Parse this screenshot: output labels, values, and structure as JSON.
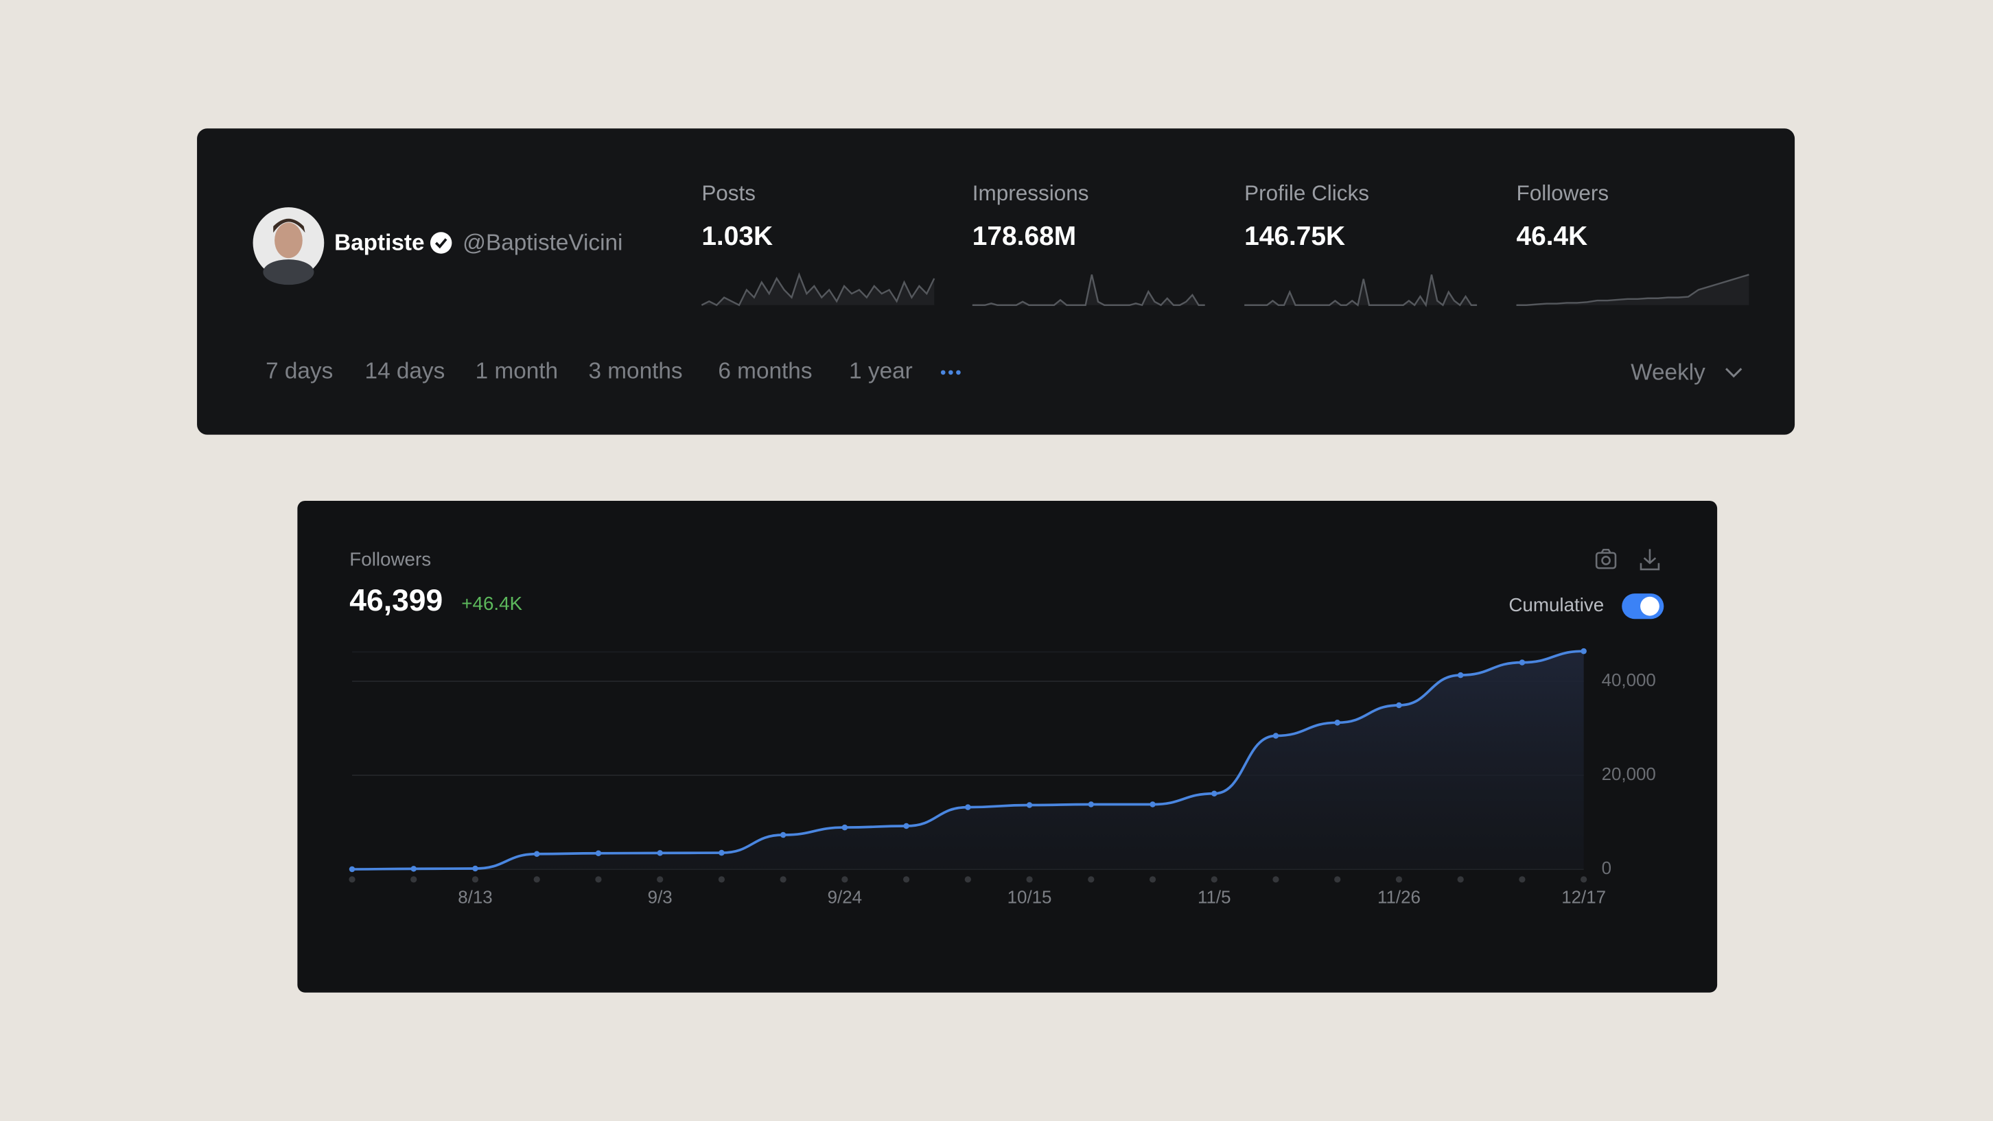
{
  "profile": {
    "name": "Baptiste",
    "handle": "@BaptisteVicini"
  },
  "stats": [
    {
      "label": "Posts",
      "value": "1.03K",
      "sparkline": [
        1,
        2,
        1,
        3,
        2,
        1,
        5,
        3,
        7,
        4,
        8,
        5,
        3,
        9,
        4,
        6,
        3,
        5,
        2,
        6,
        4,
        5,
        3,
        6,
        4,
        5,
        2,
        7,
        3,
        6,
        4,
        8
      ]
    },
    {
      "label": "Impressions",
      "value": "178.68M",
      "sparkline": [
        0,
        0,
        0,
        0.5,
        0,
        0,
        0,
        0,
        1,
        0,
        0,
        0,
        0,
        0,
        1.5,
        0,
        0,
        0,
        0,
        9,
        1,
        0,
        0,
        0,
        0,
        0,
        0.5,
        0,
        4,
        1,
        0,
        2,
        0,
        0,
        1,
        3,
        0,
        0
      ]
    },
    {
      "label": "Profile Clicks",
      "value": "146.75K",
      "sparkline": [
        0,
        0,
        0,
        0,
        0,
        1,
        0,
        0,
        3,
        0,
        0,
        0,
        0,
        0,
        0,
        0,
        1,
        0,
        0,
        1,
        0,
        6,
        0,
        0,
        0,
        0,
        0,
        0,
        0,
        1,
        0,
        2,
        0,
        7,
        1,
        0,
        3,
        1,
        0,
        2,
        0,
        0
      ]
    },
    {
      "label": "Followers",
      "value": "46.4K",
      "sparkline": [
        0,
        0,
        0.1,
        0.2,
        0.2,
        0.3,
        0.3,
        0.4,
        0.6,
        0.6,
        0.7,
        0.8,
        0.8,
        0.9,
        0.9,
        1,
        1,
        1.1,
        2,
        2.4,
        2.8,
        3.2,
        3.6,
        4
      ]
    }
  ],
  "ranges": [
    "7 days",
    "14 days",
    "1 month",
    "3 months",
    "6 months",
    "1 year"
  ],
  "interval": "Weekly",
  "chart_data": {
    "type": "line",
    "title": "Followers",
    "total": "46,399",
    "change": "+46.4K",
    "toggle_label": "Cumulative",
    "cumulative": true,
    "categories": [
      null,
      null,
      "8/13",
      null,
      null,
      "9/3",
      null,
      null,
      "9/24",
      null,
      null,
      "10/15",
      null,
      null,
      "11/5",
      null,
      null,
      "11/26",
      null,
      null,
      "12/17"
    ],
    "values": [
      0,
      100,
      150,
      3250,
      3400,
      3450,
      3500,
      7300,
      8900,
      9200,
      13200,
      13650,
      13800,
      13800,
      16100,
      28400,
      31200,
      34900,
      41300,
      44000,
      46399
    ],
    "color": "#4a86e0",
    "ylim": [
      0,
      46500
    ],
    "yticks": [
      0,
      {
        "value": 20000,
        "label": "20,000"
      },
      {
        "value": 40000,
        "label": "40,000"
      }
    ],
    "grid": true
  }
}
